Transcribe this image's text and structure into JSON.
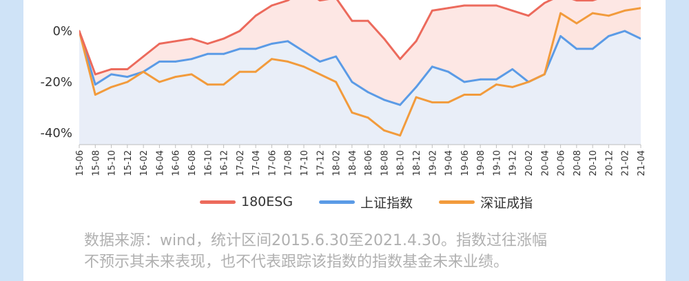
{
  "colors": {
    "background": "#cfe3f7",
    "esg": "#ec6a5c",
    "sh": "#5b9be6",
    "sz": "#f29b3c",
    "esg_fill": "#fde3df",
    "sh_fill": "#e5f0fb",
    "sz_fill": "#fdeee0"
  },
  "chart_data": {
    "type": "line",
    "xlabel": "",
    "ylabel": "",
    "ylim": [
      -44,
      8
    ],
    "yticks": [
      0,
      -20,
      -40
    ],
    "ytick_labels": [
      "0%",
      "-20%",
      "-40%"
    ],
    "grid": false,
    "legend_position": "bottom",
    "categories": [
      "15-06",
      "15-08",
      "15-10",
      "15-12",
      "16-02",
      "16-04",
      "16-06",
      "16-08",
      "16-10",
      "16-12",
      "17-02",
      "17-04",
      "17-06",
      "17-08",
      "17-10",
      "17-12",
      "18-02",
      "18-04",
      "18-06",
      "18-08",
      "18-10",
      "18-12",
      "19-02",
      "19-04",
      "19-06",
      "19-08",
      "19-10",
      "19-12",
      "20-02",
      "20-04",
      "20-06",
      "20-08",
      "20-10",
      "20-12",
      "21-02",
      "21-04"
    ],
    "series": [
      {
        "name": "180ESG",
        "values": [
          0,
          -17,
          -15,
          -15,
          -10,
          -5,
          -4,
          -3,
          -5,
          -3,
          0,
          6,
          10,
          12,
          16,
          12,
          13,
          4,
          4,
          -3,
          -11,
          -4,
          8,
          9,
          10,
          10,
          10,
          8,
          6,
          11,
          14,
          12,
          12,
          14,
          14,
          15
        ]
      },
      {
        "name": "上证指数",
        "values": [
          0,
          -21,
          -17,
          -18,
          -16,
          -12,
          -12,
          -11,
          -9,
          -9,
          -7,
          -7,
          -5,
          -4,
          -8,
          -12,
          -10,
          -20,
          -24,
          -27,
          -29,
          -22,
          -14,
          -16,
          -20,
          -19,
          -19,
          -15,
          -20,
          -17,
          -2,
          -7,
          -7,
          -2,
          0,
          -3
        ]
      },
      {
        "name": "深证成指",
        "values": [
          0,
          -25,
          -22,
          -20,
          -16,
          -20,
          -18,
          -17,
          -21,
          -21,
          -16,
          -16,
          -11,
          -12,
          -14,
          -17,
          -20,
          -32,
          -34,
          -39,
          -41,
          -26,
          -28,
          -28,
          -25,
          -25,
          -21,
          -22,
          -20,
          -17,
          7,
          3,
          7,
          6,
          8,
          9
        ]
      }
    ]
  },
  "footnote": {
    "line1": "数据来源：wind，统计区间2015.6.30至2021.4.30。指数过往涨幅",
    "line2": "不预示其未来表现，也不代表跟踪该指数的指数基金未来业绩。"
  }
}
